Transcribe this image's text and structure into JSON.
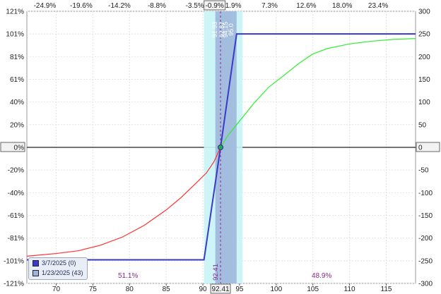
{
  "chart_data": {
    "type": "line",
    "x_range": [
      66,
      119
    ],
    "x_ticks": [
      70,
      75,
      80,
      85,
      90,
      95,
      100,
      105,
      110,
      115
    ],
    "x_pct_ticks": [
      {
        "x": 68.45,
        "label": "-24.9%"
      },
      {
        "x": 73.41,
        "label": "-19.6%"
      },
      {
        "x": 78.62,
        "label": "-14.2%"
      },
      {
        "x": 83.72,
        "label": "-8.8%"
      },
      {
        "x": 88.9,
        "label": "-3.5%"
      },
      {
        "x": 91.6,
        "label": "-0.9%"
      },
      {
        "x": 94.15,
        "label": "1.9%"
      },
      {
        "x": 99.1,
        "label": "7.3%"
      },
      {
        "x": 104.1,
        "label": "12.6%"
      },
      {
        "x": 109.0,
        "label": "18.0%"
      },
      {
        "x": 113.9,
        "label": "23.4%"
      }
    ],
    "left_axis": {
      "range": [
        -121,
        121
      ],
      "ticks": [
        "-121%",
        "-101%",
        "-81%",
        "-61%",
        "-40%",
        "-20%",
        "0%",
        "20%",
        "40%",
        "61%",
        "81%",
        "101%",
        "121%"
      ]
    },
    "right_axis": {
      "range": [
        -300,
        300
      ],
      "ticks": [
        -300,
        -250,
        -200,
        -150,
        -100,
        -50,
        0,
        50,
        100,
        150,
        200,
        250,
        300
      ]
    },
    "series": [
      {
        "name": "3/7/2025 (0)",
        "color": "#3a3ac8",
        "x": [
          66,
          90.15,
          92.41,
          94.6,
          119
        ],
        "y": [
          -248,
          -248,
          0,
          250,
          250
        ]
      },
      {
        "name": "1/23/2025 (43)",
        "color": "#ff3030",
        "color_positive": "#33ee33",
        "x": [
          66,
          70,
          73,
          76,
          79,
          82,
          85,
          87,
          89,
          90.5,
          91.5,
          92.41,
          93.5,
          95,
          97,
          99,
          101,
          103,
          105,
          107,
          110,
          113,
          116,
          119
        ],
        "y": [
          -240,
          -234,
          -228,
          -216,
          -198,
          -172,
          -138,
          -111,
          -80,
          -56,
          -32,
          0,
          28,
          58,
          98,
          133,
          158,
          184,
          206,
          218,
          228,
          234,
          238,
          240
        ]
      }
    ],
    "current_price": {
      "x": 92.41,
      "label": "92.41"
    },
    "band": {
      "x0": 90.15,
      "x1": 95.4,
      "inner_x0": 91.7,
      "inner_x1": 94.6
    },
    "vertical_labels": [
      "91.93",
      "92.87",
      "94.15",
      "95.0"
    ],
    "zone_labels": [
      {
        "x": 79.8,
        "text": "51.1%"
      },
      {
        "x": 106.2,
        "text": "48.9%"
      }
    ],
    "grid": true
  },
  "legend": {
    "items": [
      {
        "label": "3/7/2025 (0)",
        "color": "#3a3ac8"
      },
      {
        "label": "1/23/2025 (43)",
        "color": "#9fb4d8"
      }
    ]
  }
}
